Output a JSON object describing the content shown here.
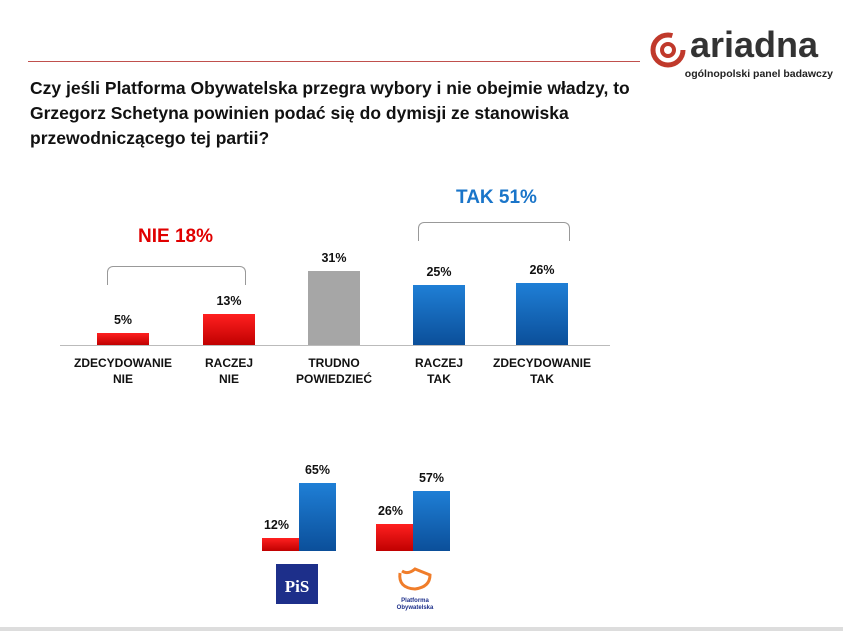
{
  "logo": {
    "word": "ariadna",
    "subtitle": "ogólnopolski panel badawczy"
  },
  "title": "Czy jeśli Platforma Obywatelska przegra wybory i nie obejmie władzy, to Grzegorz Schetyna powinien podać się do dymisji ze stanowiska przewodniczącego tej partii?",
  "chart_data": [
    {
      "type": "bar",
      "title": "",
      "categories": [
        "ZDECYDOWANIE NIE",
        "RACZEJ NIE",
        "TRUDNO POWIEDZIEĆ",
        "RACZEJ TAK",
        "ZDECYDOWANIE TAK"
      ],
      "category_lines": [
        [
          "ZDECYDOWANIE",
          "NIE"
        ],
        [
          "RACZEJ",
          "NIE"
        ],
        [
          "TRUDNO",
          "POWIEDZIEĆ"
        ],
        [
          "RACZEJ",
          "TAK"
        ],
        [
          "ZDECYDOWANIE",
          "TAK"
        ]
      ],
      "values": [
        5,
        13,
        31,
        25,
        26
      ],
      "labels": [
        "5%",
        "13%",
        "31%",
        "25%",
        "26%"
      ],
      "colors": [
        "#e00000",
        "#e00000",
        "#a6a6a6",
        "#1565c0",
        "#1565c0"
      ],
      "groups": [
        {
          "label": "NIE 18%",
          "color": "#e00000"
        },
        {
          "label": "TAK 51%",
          "color": "#1a75c9"
        }
      ],
      "ylim": [
        0,
        35
      ]
    },
    {
      "type": "bar",
      "title": "",
      "categories": [
        "PiS",
        "Platforma Obywatelska"
      ],
      "series": [
        {
          "name": "NIE",
          "color": "#e00000",
          "values": [
            12,
            26
          ],
          "labels": [
            "12%",
            "26%"
          ]
        },
        {
          "name": "TAK",
          "color": "#1565c0",
          "values": [
            65,
            57
          ],
          "labels": [
            "65%",
            "57%"
          ]
        }
      ],
      "ylim": [
        0,
        70
      ]
    }
  ],
  "party_logos": {
    "pis": "PiS",
    "po": "Platforma Obywatelska"
  }
}
